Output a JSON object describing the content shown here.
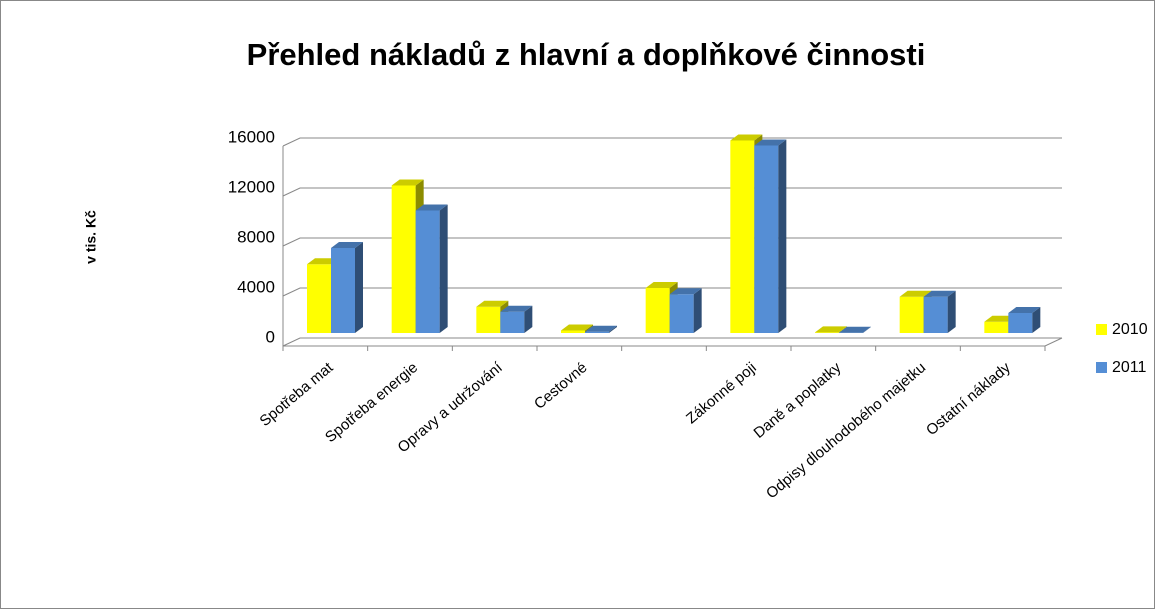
{
  "chart_data": {
    "type": "bar3d",
    "title": "Přehled nákladů z hlavní a doplňkové činnosti",
    "y_label": "v tis. Kč",
    "categories": [
      "Spotřeba mat",
      "Spotřeba energie",
      "Opravy a udržování",
      "Cestovné",
      null,
      "Zákonné poji",
      "Daně a poplatky",
      "Odpisy dlouhodobého majetku",
      "Ostatní náklady"
    ],
    "series": [
      {
        "name": "2010",
        "color": "#ffff00",
        "values": [
          5500,
          11800,
          2100,
          200,
          3600,
          15400,
          50,
          2900,
          900
        ]
      },
      {
        "name": "2011",
        "color": "#558ed5",
        "values": [
          6800,
          9800,
          1700,
          100,
          3100,
          15000,
          20,
          2900,
          1600
        ]
      }
    ],
    "ylim": [
      0,
      16000
    ],
    "yticks": [
      0,
      4000,
      8000,
      12000,
      16000
    ],
    "grid": true,
    "legend": "right"
  }
}
